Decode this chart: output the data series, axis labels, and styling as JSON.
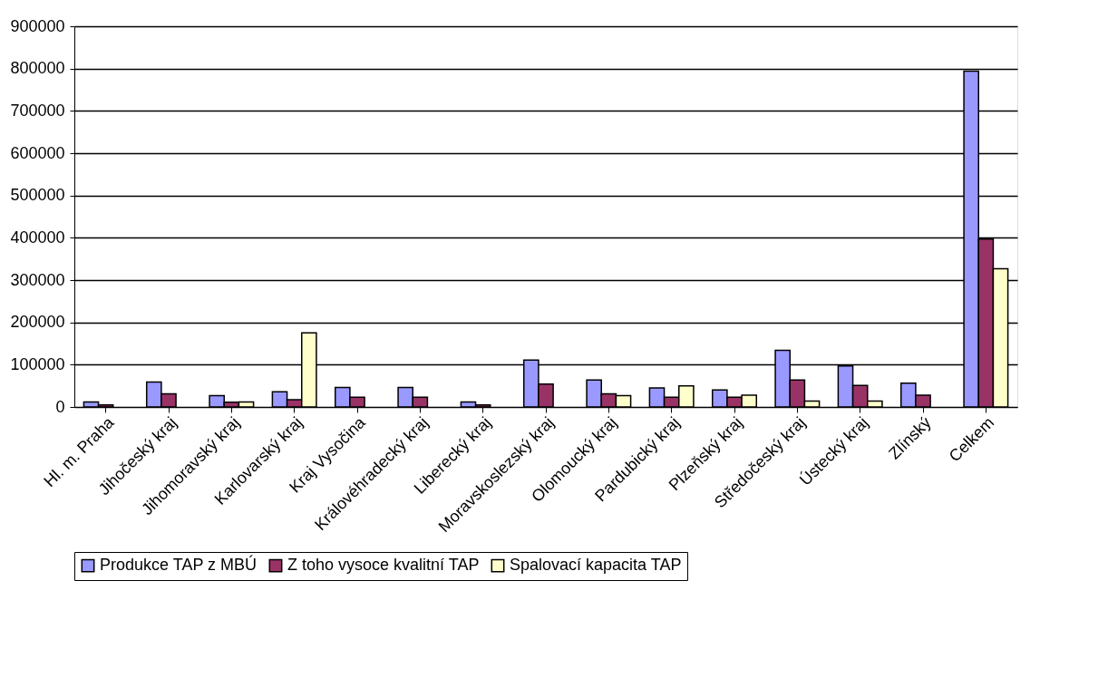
{
  "chart_data": {
    "type": "bar",
    "categories": [
      "Hl. m. Praha",
      "Jihočeský kraj",
      "Jihomoravský kraj",
      "Karlovarský kraj",
      "Kraj Vysočina",
      "Královéhradecký kraj",
      "Liberecký kraj",
      "Moravskoslezský kraj",
      "Olomoucký kraj",
      "Pardubický kraj",
      "Plzeňský kraj",
      "Středočeský kraj",
      "Ústecký kraj",
      "Zlínský",
      "Celkem"
    ],
    "series": [
      {
        "name": "Produkce TAP z MBÚ",
        "color": "#9999ff",
        "values": [
          12000,
          59000,
          27000,
          36000,
          46000,
          46000,
          12000,
          111000,
          64000,
          45000,
          40000,
          134000,
          97000,
          56000,
          794000
        ]
      },
      {
        "name": "Z toho vysoce kvalitní TAP",
        "color": "#993366",
        "values": [
          5000,
          31000,
          11000,
          17000,
          23000,
          23000,
          5000,
          54000,
          31000,
          23000,
          23000,
          64000,
          51000,
          28000,
          397000
        ]
      },
      {
        "name": "Spalovací kapacita TAP",
        "color": "#ffffcc",
        "values": [
          null,
          null,
          12000,
          175000,
          null,
          null,
          null,
          null,
          27000,
          50000,
          28000,
          14000,
          14000,
          null,
          327000
        ]
      }
    ],
    "ylim": [
      0,
      900000
    ],
    "yticks": [
      0,
      100000,
      200000,
      300000,
      400000,
      500000,
      600000,
      700000,
      800000,
      900000
    ],
    "grid": "y",
    "legend": "bottom"
  }
}
